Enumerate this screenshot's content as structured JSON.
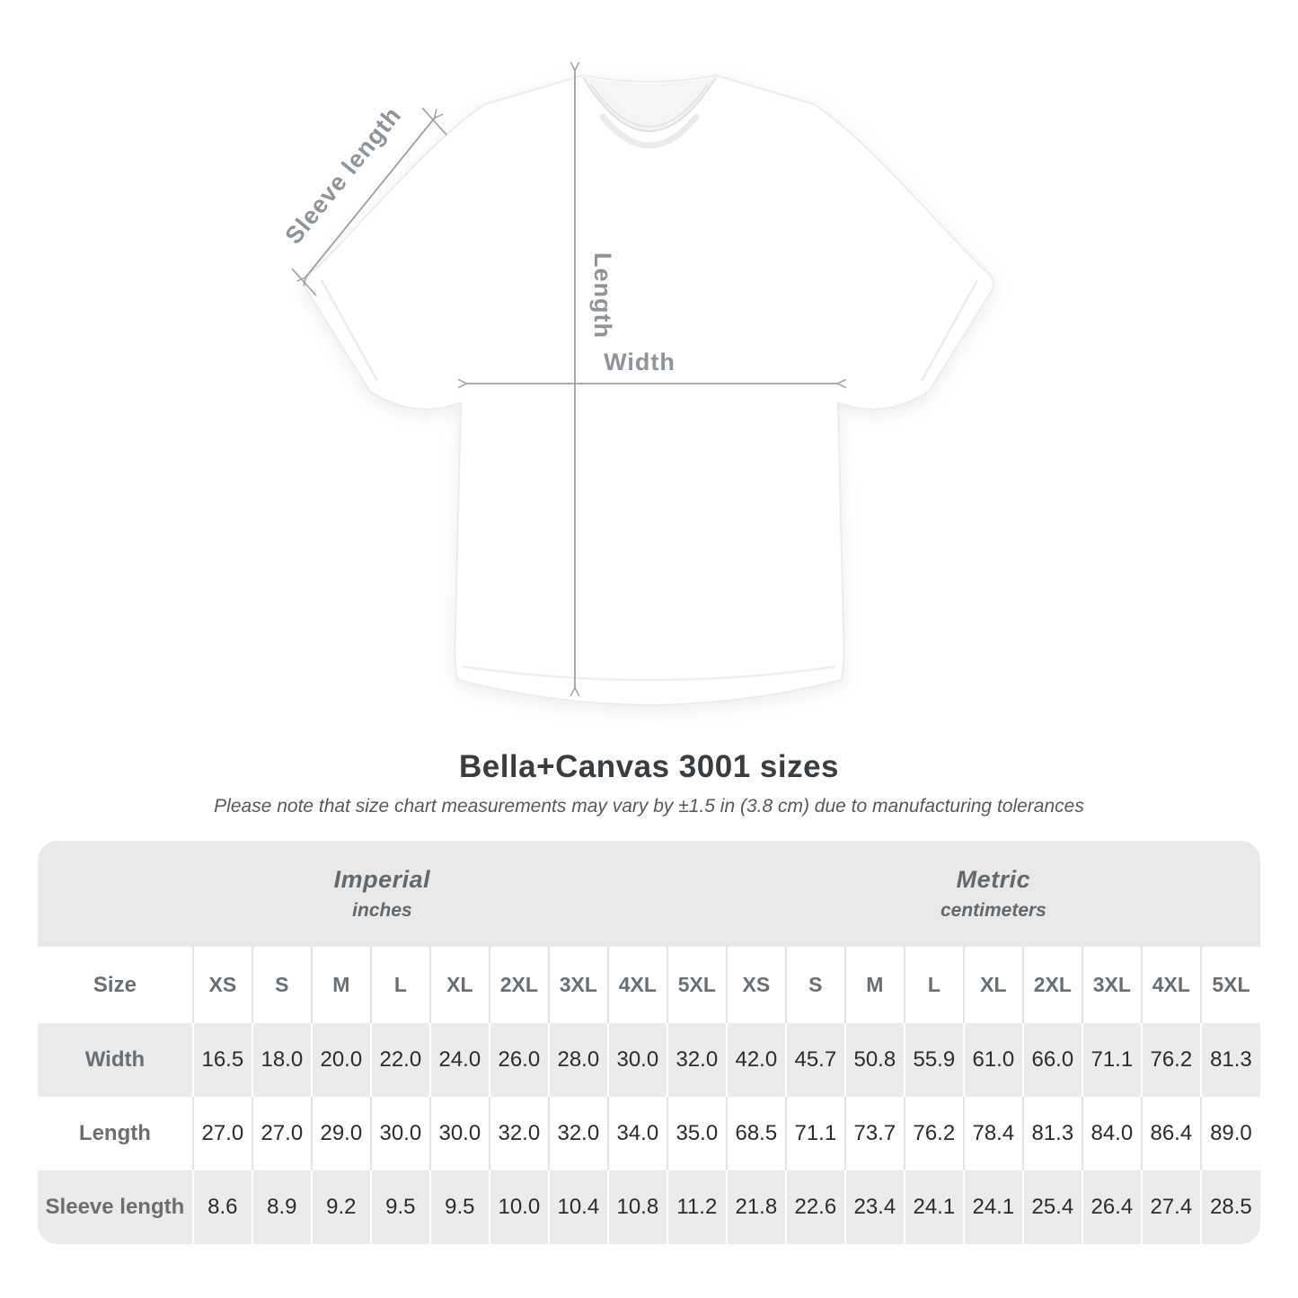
{
  "page": {
    "background": "#ffffff"
  },
  "diagram": {
    "labels": {
      "sleeve_length": "Sleeve length",
      "length": "Length",
      "width": "Width"
    },
    "annotation_line_color": "#9aa0a5",
    "annotation_label_color": "#8f9499"
  },
  "heading": {
    "title": "Bella+Canvas 3001 sizes",
    "subtitle": "Please note that size chart measurements may vary by ±1.5 in (3.8 cm) due to manufacturing tolerances"
  },
  "size_table": {
    "corner_label": "Size",
    "unit_groups": [
      {
        "name": "Imperial",
        "unit": "inches"
      },
      {
        "name": "Metric",
        "unit": "centimeters"
      }
    ],
    "sizes": [
      "XS",
      "S",
      "M",
      "L",
      "XL",
      "2XL",
      "3XL",
      "4XL",
      "5XL"
    ],
    "rows": [
      {
        "label": "Width",
        "imperial": [
          "16.5",
          "18.0",
          "20.0",
          "22.0",
          "24.0",
          "26.0",
          "28.0",
          "30.0",
          "32.0"
        ],
        "metric": [
          "42.0",
          "45.7",
          "50.8",
          "55.9",
          "61.0",
          "66.0",
          "71.1",
          "76.2",
          "81.3"
        ]
      },
      {
        "label": "Length",
        "imperial": [
          "27.0",
          "27.0",
          "29.0",
          "30.0",
          "30.0",
          "32.0",
          "32.0",
          "34.0",
          "35.0"
        ],
        "metric": [
          "68.5",
          "71.1",
          "73.7",
          "76.2",
          "78.4",
          "81.3",
          "84.0",
          "86.4",
          "89.0"
        ]
      },
      {
        "label": "Sleeve length",
        "imperial": [
          "8.6",
          "8.9",
          "9.2",
          "9.5",
          "9.5",
          "10.0",
          "10.4",
          "10.8",
          "11.2"
        ],
        "metric": [
          "21.8",
          "22.6",
          "23.4",
          "24.1",
          "24.1",
          "25.4",
          "26.4",
          "27.4",
          "28.5"
        ]
      }
    ],
    "colors": {
      "header_band": "#e9e9e9",
      "gray_row": "#ebebeb",
      "separator_on_white": "#e4e4e4",
      "separator_on_gray": "#ffffff",
      "label_text": "#6a6f73",
      "value_text": "#2c2c2c"
    }
  },
  "chart_data": {
    "type": "table",
    "title": "Bella+Canvas 3001 sizes",
    "subtitle": "Please note that size chart measurements may vary by ±1.5 in (3.8 cm) due to manufacturing tolerances",
    "column_groups": [
      {
        "label": "Imperial",
        "unit": "inches",
        "columns": [
          "XS",
          "S",
          "M",
          "L",
          "XL",
          "2XL",
          "3XL",
          "4XL",
          "5XL"
        ]
      },
      {
        "label": "Metric",
        "unit": "centimeters",
        "columns": [
          "XS",
          "S",
          "M",
          "L",
          "XL",
          "2XL",
          "3XL",
          "4XL",
          "5XL"
        ]
      }
    ],
    "rows": [
      {
        "measure": "Width",
        "imperial_in": [
          16.5,
          18.0,
          20.0,
          22.0,
          24.0,
          26.0,
          28.0,
          30.0,
          32.0
        ],
        "metric_cm": [
          42.0,
          45.7,
          50.8,
          55.9,
          61.0,
          66.0,
          71.1,
          76.2,
          81.3
        ]
      },
      {
        "measure": "Length",
        "imperial_in": [
          27.0,
          27.0,
          29.0,
          30.0,
          30.0,
          32.0,
          32.0,
          34.0,
          35.0
        ],
        "metric_cm": [
          68.5,
          71.1,
          73.7,
          76.2,
          78.4,
          81.3,
          84.0,
          86.4,
          89.0
        ]
      },
      {
        "measure": "Sleeve length",
        "imperial_in": [
          8.6,
          8.9,
          9.2,
          9.5,
          9.5,
          10.0,
          10.4,
          10.8,
          11.2
        ],
        "metric_cm": [
          21.8,
          22.6,
          23.4,
          24.1,
          24.1,
          25.4,
          26.4,
          27.4,
          28.5
        ]
      }
    ],
    "diagram_annotations": [
      "Sleeve length",
      "Length",
      "Width"
    ]
  }
}
